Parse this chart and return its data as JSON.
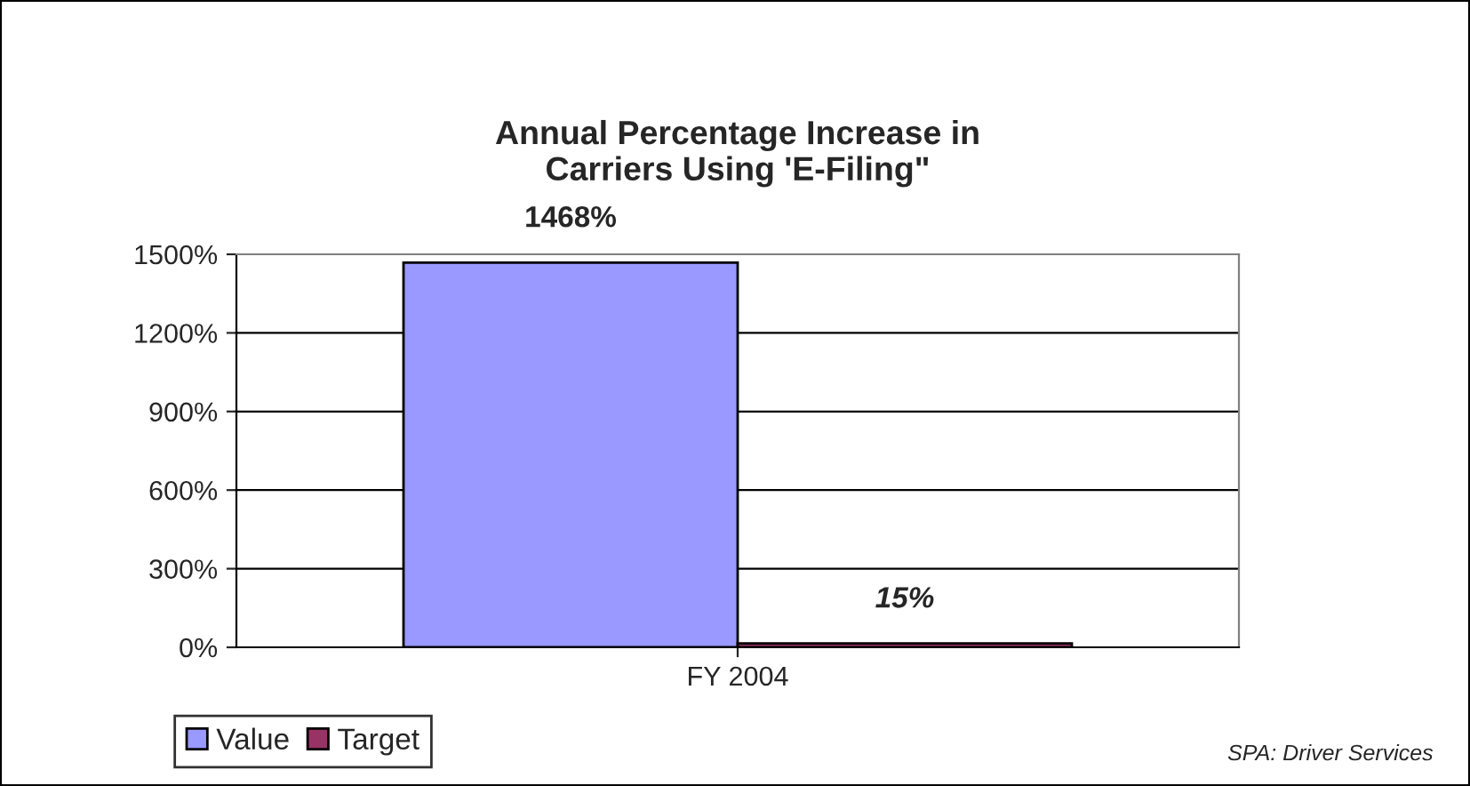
{
  "chart_data": {
    "type": "bar",
    "title": "Annual Percentage Increase in\nCarriers Using 'E-Filing\"",
    "categories": [
      "FY 2004"
    ],
    "series": [
      {
        "name": "Value",
        "color": "#9999ff",
        "values": [
          1468
        ],
        "value_labels": [
          "1468%"
        ]
      },
      {
        "name": "Target",
        "color": "#993366",
        "values": [
          15
        ],
        "value_labels": [
          "15%"
        ]
      }
    ],
    "ylim": [
      0,
      1500
    ],
    "yticks": [
      {
        "value": 0,
        "label": "0%"
      },
      {
        "value": 300,
        "label": "300%"
      },
      {
        "value": 600,
        "label": "600%"
      },
      {
        "value": 900,
        "label": "900%"
      },
      {
        "value": 1200,
        "label": "1200%"
      },
      {
        "value": 1500,
        "label": "1500%"
      }
    ],
    "grid": "y",
    "legend": "bottom left",
    "annotations": [
      "SPA: Driver Services"
    ]
  }
}
